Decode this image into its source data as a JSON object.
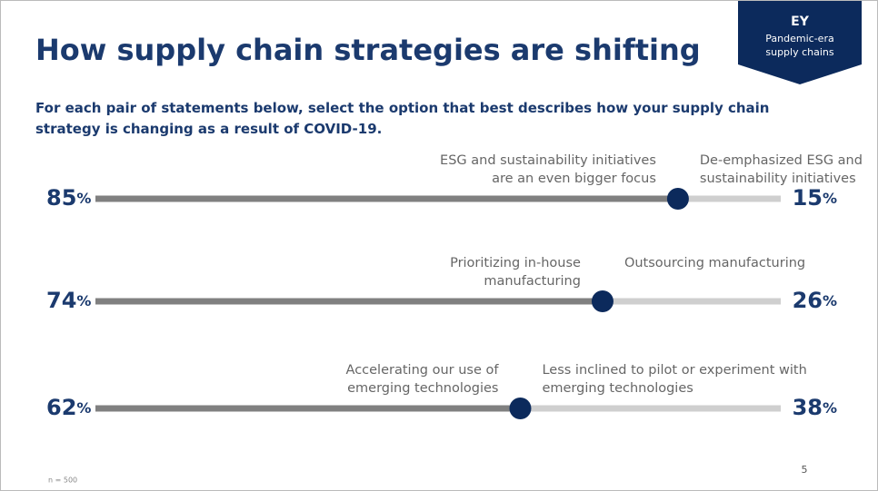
{
  "badge": {
    "title": "EY",
    "lines": [
      "Pandemic-era",
      "supply chains"
    ]
  },
  "chart_data": {
    "type": "slider",
    "title": "How supply chain strategies are shifting",
    "subtitle": "For each pair of statements below, select the option that best describes how your supply chain strategy is changing as a result of COVID-19.",
    "unit": "%",
    "left_color": "#808080",
    "right_color": "#cfcfcf",
    "marker_color": "#0c2a5c",
    "xlim": [
      0,
      100
    ],
    "rows": [
      {
        "left_label": [
          "ESG and sustainability initiatives",
          "are an even bigger focus"
        ],
        "right_label": [
          "De-emphasized ESG and",
          "sustainability initiatives"
        ],
        "left_value": 85,
        "right_value": 15
      },
      {
        "left_label": [
          "Prioritizing in-house",
          "manufacturing"
        ],
        "right_label": [
          "Outsourcing manufacturing"
        ],
        "left_value": 74,
        "right_value": 26
      },
      {
        "left_label": [
          "Accelerating our use of",
          "emerging technologies"
        ],
        "right_label": [
          "Less inclined to pilot or experiment with",
          "emerging technologies"
        ],
        "left_value": 62,
        "right_value": 38
      }
    ]
  },
  "footnote": "n = 500",
  "page_number": "5"
}
